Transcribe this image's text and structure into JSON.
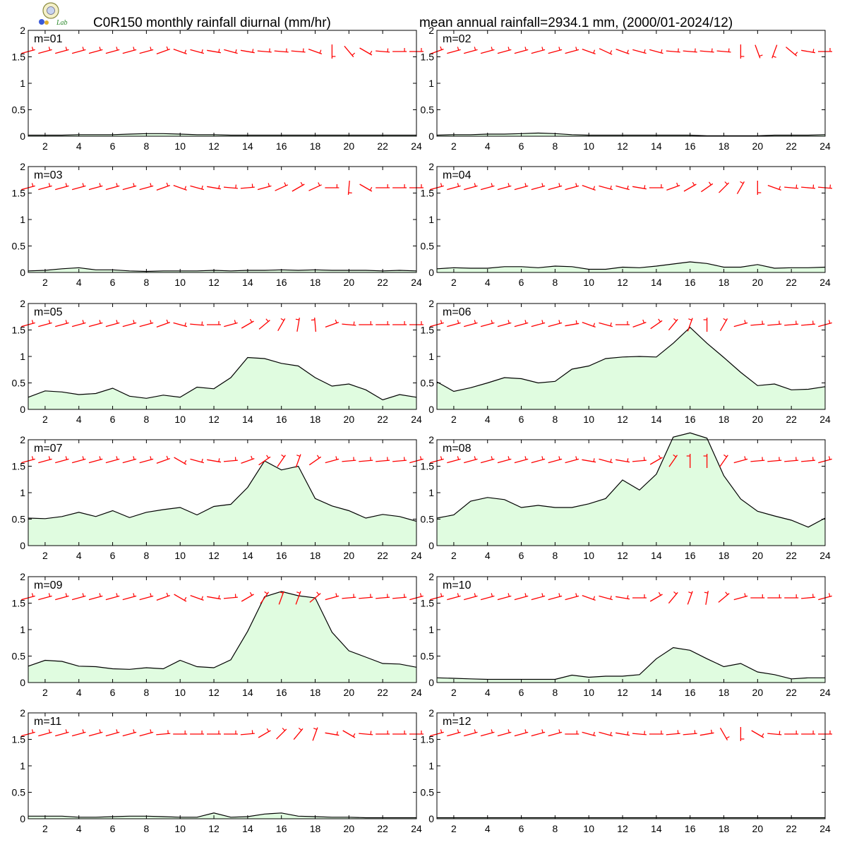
{
  "header": {
    "title": "C0R150 monthly rainfall diurnal (mm/hr)",
    "subtitle": "mean annual rainfall=2934.1 mm, (2000/01-2024/12)"
  },
  "logo": {
    "name": "lab-logo-icon",
    "text": "Lab"
  },
  "chart_data": {
    "type": "area",
    "x": [
      1,
      2,
      3,
      4,
      5,
      6,
      7,
      8,
      9,
      10,
      11,
      12,
      13,
      14,
      15,
      16,
      17,
      18,
      19,
      20,
      21,
      22,
      23,
      24
    ],
    "x_ticks": [
      2,
      4,
      6,
      8,
      10,
      12,
      14,
      16,
      18,
      20,
      22,
      24
    ],
    "y_ticks": [
      0,
      0.5,
      1,
      1.5,
      2
    ],
    "y_tick_labels": [
      "0",
      "0.5",
      "1",
      "1.5",
      "2"
    ],
    "ylim": [
      0,
      2
    ],
    "xlim": [
      1,
      24
    ],
    "grid": false,
    "fill_color": "#e0fce0",
    "line_color": "#000000",
    "wind_barb_color": "#ff0000",
    "panels": [
      {
        "label": "m=01",
        "values": [
          0.02,
          0.02,
          0.02,
          0.03,
          0.03,
          0.03,
          0.04,
          0.05,
          0.05,
          0.04,
          0.03,
          0.03,
          0.02,
          0.02,
          0.02,
          0.02,
          0.02,
          0.02,
          0.02,
          0.02,
          0.02,
          0.02,
          0.02,
          0.02
        ]
      },
      {
        "label": "m=02",
        "values": [
          0.02,
          0.03,
          0.03,
          0.04,
          0.04,
          0.05,
          0.06,
          0.05,
          0.03,
          0.02,
          0.02,
          0.02,
          0.02,
          0.02,
          0.02,
          0.02,
          0.01,
          0.01,
          0.01,
          0.01,
          0.02,
          0.02,
          0.02,
          0.03
        ]
      },
      {
        "label": "m=03",
        "values": [
          0.03,
          0.04,
          0.07,
          0.09,
          0.05,
          0.05,
          0.03,
          0.02,
          0.03,
          0.03,
          0.03,
          0.04,
          0.03,
          0.04,
          0.04,
          0.05,
          0.04,
          0.05,
          0.04,
          0.04,
          0.04,
          0.03,
          0.04,
          0.03
        ]
      },
      {
        "label": "m=04",
        "values": [
          0.07,
          0.09,
          0.08,
          0.08,
          0.11,
          0.11,
          0.09,
          0.12,
          0.11,
          0.06,
          0.06,
          0.1,
          0.09,
          0.12,
          0.16,
          0.2,
          0.17,
          0.1,
          0.1,
          0.15,
          0.08,
          0.09,
          0.09,
          0.1
        ]
      },
      {
        "label": "m=05",
        "values": [
          0.23,
          0.35,
          0.33,
          0.28,
          0.3,
          0.4,
          0.25,
          0.21,
          0.27,
          0.23,
          0.42,
          0.39,
          0.6,
          0.98,
          0.96,
          0.87,
          0.82,
          0.6,
          0.44,
          0.48,
          0.37,
          0.18,
          0.28,
          0.23
        ]
      },
      {
        "label": "m=06",
        "values": [
          0.52,
          0.34,
          0.41,
          0.5,
          0.6,
          0.58,
          0.5,
          0.53,
          0.76,
          0.82,
          0.96,
          0.99,
          1.0,
          0.99,
          1.25,
          1.55,
          1.25,
          0.98,
          0.7,
          0.45,
          0.48,
          0.37,
          0.38,
          0.43
        ]
      },
      {
        "label": "m=07",
        "values": [
          0.52,
          0.51,
          0.55,
          0.63,
          0.55,
          0.66,
          0.53,
          0.63,
          0.68,
          0.72,
          0.58,
          0.74,
          0.78,
          1.1,
          1.6,
          1.43,
          1.5,
          0.89,
          0.75,
          0.66,
          0.52,
          0.59,
          0.55,
          0.46
        ]
      },
      {
        "label": "m=08",
        "values": [
          0.52,
          0.58,
          0.84,
          0.91,
          0.87,
          0.72,
          0.76,
          0.72,
          0.72,
          0.79,
          0.89,
          1.24,
          1.05,
          1.35,
          2.05,
          2.13,
          2.03,
          1.32,
          0.88,
          0.65,
          0.56,
          0.48,
          0.35,
          0.52
        ]
      },
      {
        "label": "m=09",
        "values": [
          0.31,
          0.42,
          0.4,
          0.31,
          0.3,
          0.26,
          0.25,
          0.28,
          0.26,
          0.42,
          0.3,
          0.28,
          0.43,
          0.97,
          1.62,
          1.72,
          1.64,
          1.6,
          0.95,
          0.6,
          0.48,
          0.36,
          0.35,
          0.29
        ]
      },
      {
        "label": "m=10",
        "values": [
          0.09,
          0.08,
          0.07,
          0.06,
          0.06,
          0.06,
          0.06,
          0.06,
          0.14,
          0.1,
          0.12,
          0.12,
          0.15,
          0.45,
          0.66,
          0.61,
          0.45,
          0.3,
          0.36,
          0.2,
          0.15,
          0.07,
          0.09,
          0.09
        ]
      },
      {
        "label": "m=11",
        "values": [
          0.05,
          0.05,
          0.05,
          0.03,
          0.03,
          0.04,
          0.05,
          0.05,
          0.04,
          0.03,
          0.03,
          0.11,
          0.03,
          0.04,
          0.09,
          0.11,
          0.05,
          0.04,
          0.03,
          0.03,
          0.02,
          0.02,
          0.02,
          0.02
        ]
      },
      {
        "label": "m=12",
        "values": [
          0.02,
          0.02,
          0.02,
          0.02,
          0.02,
          0.02,
          0.02,
          0.02,
          0.02,
          0.02,
          0.02,
          0.02,
          0.02,
          0.02,
          0.02,
          0.02,
          0.02,
          0.02,
          0.02,
          0.02,
          0.02,
          0.02,
          0.02,
          0.02
        ]
      }
    ],
    "wind_barbs": [
      [
        255,
        255,
        255,
        255,
        255,
        255,
        255,
        255,
        250,
        290,
        285,
        280,
        285,
        280,
        275,
        275,
        275,
        290,
        0,
        320,
        300,
        275,
        270,
        270
      ],
      [
        250,
        255,
        255,
        255,
        255,
        255,
        255,
        255,
        255,
        290,
        295,
        290,
        285,
        285,
        275,
        275,
        275,
        275,
        0,
        340,
        20,
        310,
        280,
        270
      ],
      [
        255,
        255,
        255,
        255,
        255,
        255,
        255,
        255,
        250,
        290,
        285,
        280,
        275,
        265,
        255,
        245,
        240,
        245,
        270,
        5,
        300,
        270,
        270,
        270
      ],
      [
        255,
        255,
        255,
        255,
        255,
        255,
        255,
        255,
        255,
        290,
        285,
        285,
        280,
        270,
        250,
        240,
        235,
        225,
        210,
        0,
        290,
        275,
        275,
        275
      ],
      [
        255,
        255,
        255,
        255,
        255,
        255,
        255,
        255,
        250,
        285,
        275,
        270,
        255,
        240,
        230,
        210,
        190,
        175,
        250,
        275,
        270,
        270,
        270,
        270
      ],
      [
        255,
        255,
        255,
        255,
        255,
        255,
        255,
        255,
        260,
        290,
        285,
        270,
        250,
        235,
        220,
        200,
        180,
        210,
        255,
        265,
        265,
        265,
        265,
        255
      ],
      [
        255,
        255,
        255,
        255,
        255,
        255,
        255,
        255,
        250,
        300,
        285,
        280,
        265,
        250,
        235,
        215,
        200,
        235,
        255,
        265,
        265,
        265,
        265,
        255
      ],
      [
        255,
        255,
        255,
        255,
        255,
        255,
        255,
        255,
        255,
        280,
        285,
        280,
        265,
        240,
        215,
        180,
        180,
        215,
        255,
        265,
        265,
        265,
        265,
        255
      ],
      [
        255,
        255,
        255,
        255,
        255,
        255,
        255,
        255,
        250,
        300,
        290,
        280,
        265,
        240,
        215,
        200,
        200,
        230,
        255,
        265,
        265,
        265,
        265,
        255
      ],
      [
        255,
        255,
        255,
        255,
        255,
        255,
        255,
        255,
        255,
        290,
        285,
        280,
        270,
        240,
        220,
        200,
        190,
        230,
        255,
        270,
        270,
        270,
        265,
        255
      ],
      [
        255,
        255,
        255,
        255,
        255,
        255,
        255,
        255,
        265,
        270,
        270,
        270,
        270,
        265,
        240,
        225,
        220,
        200,
        280,
        300,
        275,
        270,
        270,
        270
      ],
      [
        255,
        255,
        255,
        255,
        255,
        255,
        255,
        255,
        270,
        285,
        285,
        280,
        275,
        270,
        265,
        265,
        260,
        330,
        0,
        300,
        275,
        270,
        270,
        270
      ]
    ]
  }
}
